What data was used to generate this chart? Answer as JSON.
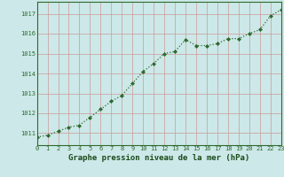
{
  "x": [
    0,
    1,
    2,
    3,
    4,
    5,
    6,
    7,
    8,
    9,
    10,
    11,
    12,
    13,
    14,
    15,
    16,
    17,
    18,
    19,
    20,
    21,
    22,
    23
  ],
  "y": [
    1010.8,
    1010.9,
    1011.1,
    1011.3,
    1011.4,
    1011.8,
    1012.2,
    1012.6,
    1012.9,
    1013.5,
    1014.1,
    1014.5,
    1015.0,
    1015.1,
    1015.7,
    1015.4,
    1015.4,
    1015.5,
    1015.75,
    1015.75,
    1016.0,
    1016.2,
    1016.9,
    1017.2
  ],
  "line_color": "#2d6a2d",
  "marker": "D",
  "marker_size": 2.0,
  "bg_color": "#cce8e8",
  "grid_color": "#cc9999",
  "xlabel": "Graphe pression niveau de la mer (hPa)",
  "xlabel_color": "#1a4a1a",
  "xlabel_fontsize": 6.5,
  "ytick_labels": [
    "1011",
    "1012",
    "1013",
    "1014",
    "1015",
    "1016",
    "1017"
  ],
  "ytick_values": [
    1011,
    1012,
    1013,
    1014,
    1015,
    1016,
    1017
  ],
  "ylim": [
    1010.4,
    1017.6
  ],
  "xlim": [
    0,
    23
  ],
  "xtick_labels": [
    "0",
    "1",
    "2",
    "3",
    "4",
    "5",
    "6",
    "7",
    "8",
    "9",
    "10",
    "11",
    "12",
    "13",
    "14",
    "15",
    "16",
    "17",
    "18",
    "19",
    "20",
    "21",
    "22",
    "23"
  ],
  "tick_color": "#2d6a2d",
  "tick_fontsize": 5.0,
  "line_width": 0.9
}
